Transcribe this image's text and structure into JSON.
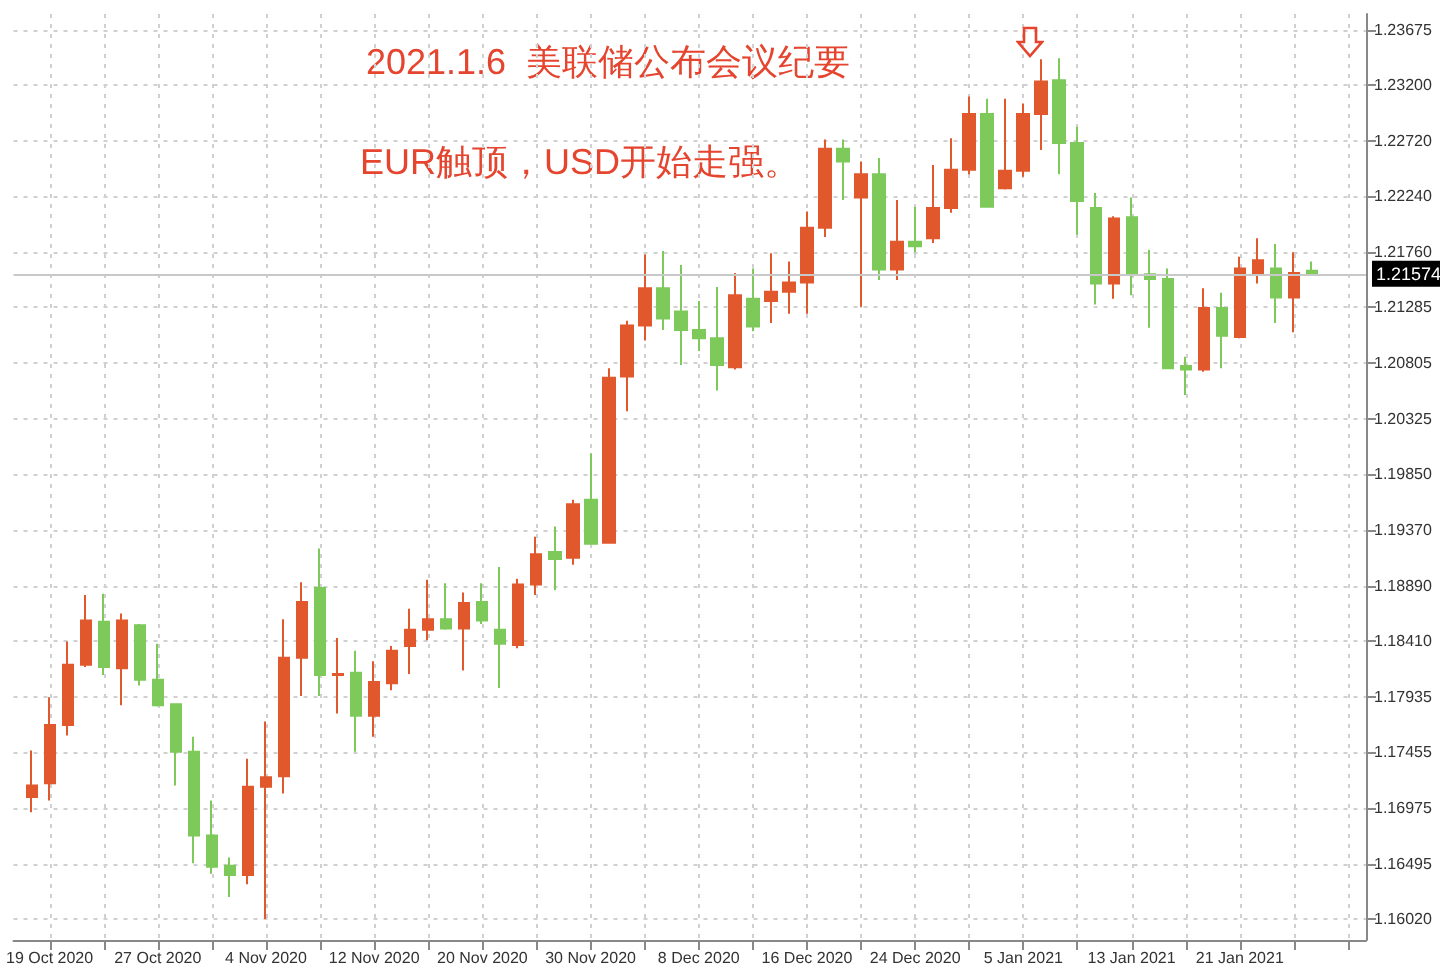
{
  "chart_data": {
    "type": "candlestick",
    "annotations": [
      "2021.1.6  美联储公布会议纪要",
      "EUR触顶，USD开始走强。"
    ],
    "categories": [
      null,
      "19 Oct 2020",
      null,
      null,
      null,
      null,
      null,
      "27 Oct 2020",
      null,
      null,
      null,
      null,
      null,
      "4 Nov 2020",
      null,
      null,
      null,
      null,
      null,
      "12 Nov 2020",
      null,
      null,
      null,
      null,
      null,
      "20 Nov 2020",
      null,
      null,
      null,
      null,
      null,
      "30 Nov 2020",
      null,
      null,
      null,
      null,
      null,
      "8 Dec 2020",
      null,
      null,
      null,
      null,
      null,
      "16 Dec 2020",
      null,
      null,
      null,
      null,
      null,
      "24 Dec 2020",
      null,
      null,
      null,
      null,
      null,
      "5 Jan 2021",
      null,
      null,
      null,
      null,
      null,
      "13 Jan 2021",
      null,
      null,
      null,
      null,
      null,
      "21 Jan 2021",
      null,
      null,
      null,
      null
    ],
    "ohlc": [
      [
        1.1707,
        1.1747,
        1.1694,
        1.1717
      ],
      [
        1.1719,
        1.1793,
        1.1704,
        1.1769
      ],
      [
        1.1769,
        1.1841,
        1.176,
        1.1821
      ],
      [
        1.1821,
        1.1881,
        1.1819,
        1.1859
      ],
      [
        1.1858,
        1.1882,
        1.1812,
        1.1819
      ],
      [
        1.1818,
        1.1865,
        1.1786,
        1.1859
      ],
      [
        1.1855,
        1.1856,
        1.1803,
        1.1808
      ],
      [
        1.1808,
        1.1839,
        1.1785,
        1.1786
      ],
      [
        1.1787,
        1.1787,
        1.1717,
        1.1746
      ],
      [
        1.1746,
        1.1759,
        1.165,
        1.1674
      ],
      [
        1.1674,
        1.1704,
        1.1641,
        1.1647
      ],
      [
        1.1648,
        1.1655,
        1.1621,
        1.164
      ],
      [
        1.164,
        1.174,
        1.1632,
        1.1716
      ],
      [
        1.1716,
        1.1772,
        1.1602,
        1.1724
      ],
      [
        1.1725,
        1.186,
        1.171,
        1.1827
      ],
      [
        1.1827,
        1.1892,
        1.1794,
        1.1875
      ],
      [
        1.1887,
        1.1921,
        1.1794,
        1.1812
      ],
      [
        1.1812,
        1.1844,
        1.1779,
        1.1813
      ],
      [
        1.1814,
        1.1833,
        1.1746,
        1.1777
      ],
      [
        1.1777,
        1.1824,
        1.1759,
        1.1806
      ],
      [
        1.1805,
        1.1837,
        1.1799,
        1.1833
      ],
      [
        1.1837,
        1.1869,
        1.1813,
        1.1851
      ],
      [
        1.1851,
        1.1894,
        1.1842,
        1.186
      ],
      [
        1.186,
        1.1891,
        1.1851,
        1.1852
      ],
      [
        1.1852,
        1.1883,
        1.1816,
        1.1874
      ],
      [
        1.1875,
        1.1891,
        1.1856,
        1.1859
      ],
      [
        1.1851,
        1.1905,
        1.1801,
        1.1839
      ],
      [
        1.1838,
        1.1895,
        1.1835,
        1.189
      ],
      [
        1.189,
        1.1931,
        1.1881,
        1.1916
      ],
      [
        1.1918,
        1.194,
        1.1885,
        1.1912
      ],
      [
        1.1913,
        1.1963,
        1.1907,
        1.1959
      ],
      [
        1.1963,
        1.2003,
        1.1925,
        1.1925
      ],
      [
        1.1926,
        1.2076,
        1.1925,
        1.2068
      ],
      [
        1.2069,
        1.2117,
        1.2039,
        1.2113
      ],
      [
        1.2113,
        1.2174,
        1.21,
        1.2145
      ],
      [
        1.2145,
        1.2177,
        1.2109,
        1.2119
      ],
      [
        1.2125,
        1.2165,
        1.2079,
        1.2109
      ],
      [
        1.2109,
        1.2134,
        1.2091,
        1.2102
      ],
      [
        1.2102,
        1.2146,
        1.2057,
        1.2079
      ],
      [
        1.2077,
        1.2158,
        1.2075,
        1.2139
      ],
      [
        1.2136,
        1.2162,
        1.2108,
        1.2112
      ],
      [
        1.2134,
        1.2175,
        1.2115,
        1.2142
      ],
      [
        1.2142,
        1.2168,
        1.2123,
        1.215
      ],
      [
        1.215,
        1.2211,
        1.2123,
        1.2197
      ],
      [
        1.2197,
        1.2273,
        1.2189,
        1.2265
      ],
      [
        1.2265,
        1.2273,
        1.2221,
        1.2254
      ],
      [
        1.2223,
        1.2254,
        1.2129,
        1.2243
      ],
      [
        1.2243,
        1.2257,
        1.2152,
        1.2161
      ],
      [
        1.2161,
        1.2221,
        1.2152,
        1.2185
      ],
      [
        1.2185,
        1.2215,
        1.2176,
        1.2181
      ],
      [
        1.2188,
        1.2251,
        1.2184,
        1.2214
      ],
      [
        1.2214,
        1.2274,
        1.221,
        1.2247
      ],
      [
        1.2247,
        1.231,
        1.2243,
        1.2295
      ],
      [
        1.2295,
        1.2308,
        1.2215,
        1.2215
      ],
      [
        1.2231,
        1.2308,
        1.223,
        1.2246
      ],
      [
        1.2246,
        1.2304,
        1.2241,
        1.2295
      ],
      [
        1.2295,
        1.2342,
        1.2264,
        1.2323
      ],
      [
        1.2324,
        1.2343,
        1.2243,
        1.227
      ],
      [
        1.227,
        1.2284,
        1.2191,
        1.222
      ],
      [
        1.2214,
        1.2227,
        1.2131,
        1.2149
      ],
      [
        1.2149,
        1.2207,
        1.2136,
        1.2205
      ],
      [
        1.2206,
        1.2223,
        1.2139,
        1.2157
      ],
      [
        1.2157,
        1.2178,
        1.2111,
        1.2153
      ],
      [
        1.2153,
        1.2162,
        1.2076,
        1.2076
      ],
      [
        1.2078,
        1.2086,
        1.2053,
        1.2075
      ],
      [
        1.2075,
        1.2145,
        1.2073,
        1.2128
      ],
      [
        1.2128,
        1.2141,
        1.2076,
        1.2104
      ],
      [
        1.2103,
        1.2172,
        1.2102,
        1.2162
      ],
      [
        1.2158,
        1.2188,
        1.2149,
        1.2169
      ],
      [
        1.2162,
        1.2183,
        1.2115,
        1.2137
      ],
      [
        1.2137,
        1.2176,
        1.2107,
        1.2158
      ],
      [
        1.216,
        1.2168,
        1.2157,
        1.2157
      ]
    ],
    "colors": [
      "#e0582c",
      "#e0582c",
      "#e0582c",
      "#e0582c",
      "#7dc95a",
      "#e0582c",
      "#7dc95a",
      "#7dc95a",
      "#7dc95a",
      "#7dc95a",
      "#7dc95a",
      "#7dc95a",
      "#e0582c",
      "#e0582c",
      "#e0582c",
      "#e0582c",
      "#7dc95a",
      "#e0582c",
      "#7dc95a",
      "#e0582c",
      "#e0582c",
      "#e0582c",
      "#e0582c",
      "#7dc95a",
      "#e0582c",
      "#7dc95a",
      "#7dc95a",
      "#e0582c",
      "#e0582c",
      "#7dc95a",
      "#e0582c",
      "#7dc95a",
      "#e0582c",
      "#e0582c",
      "#e0582c",
      "#7dc95a",
      "#7dc95a",
      "#7dc95a",
      "#7dc95a",
      "#e0582c",
      "#7dc95a",
      "#e0582c",
      "#e0582c",
      "#e0582c",
      "#e0582c",
      "#7dc95a",
      "#e0582c",
      "#7dc95a",
      "#e0582c",
      "#7dc95a",
      "#e0582c",
      "#e0582c",
      "#e0582c",
      "#7dc95a",
      "#e0582c",
      "#e0582c",
      "#e0582c",
      "#7dc95a",
      "#7dc95a",
      "#7dc95a",
      "#e0582c",
      "#7dc95a",
      "#7dc95a",
      "#7dc95a",
      "#7dc95a",
      "#e0582c",
      "#7dc95a",
      "#e0582c",
      "#e0582c",
      "#7dc95a",
      "#e0582c",
      "#7dc95a"
    ],
    "ylim": [
      1.1584,
      1.2381
    ],
    "yticks": [
      {
        "value": 1.1602,
        "label": "1.16020"
      },
      {
        "value": 1.16495,
        "label": "1.16495"
      },
      {
        "value": 1.16975,
        "label": "1.16975"
      },
      {
        "value": 1.17455,
        "label": "1.17455"
      },
      {
        "value": 1.17935,
        "label": "1.17935"
      },
      {
        "value": 1.1841,
        "label": "1.18410"
      },
      {
        "value": 1.1889,
        "label": "1.18890"
      },
      {
        "value": 1.1937,
        "label": "1.19370"
      },
      {
        "value": 1.1985,
        "label": "1.19850"
      },
      {
        "value": 1.20325,
        "label": "1.20325"
      },
      {
        "value": 1.20805,
        "label": "1.20805"
      },
      {
        "value": 1.21285,
        "label": "1.21285"
      },
      {
        "value": 1.2176,
        "label": "1.21760"
      },
      {
        "value": 1.2224,
        "label": "1.22240"
      },
      {
        "value": 1.2272,
        "label": "1.22720"
      },
      {
        "value": 1.232,
        "label": "1.23200"
      },
      {
        "value": 1.23675,
        "label": "1.23675"
      }
    ],
    "ref_lines": [
      {
        "axis": "y",
        "value": 1.21574,
        "label": "1.21574",
        "color": "#c8c8c8"
      }
    ],
    "grid": true
  }
}
